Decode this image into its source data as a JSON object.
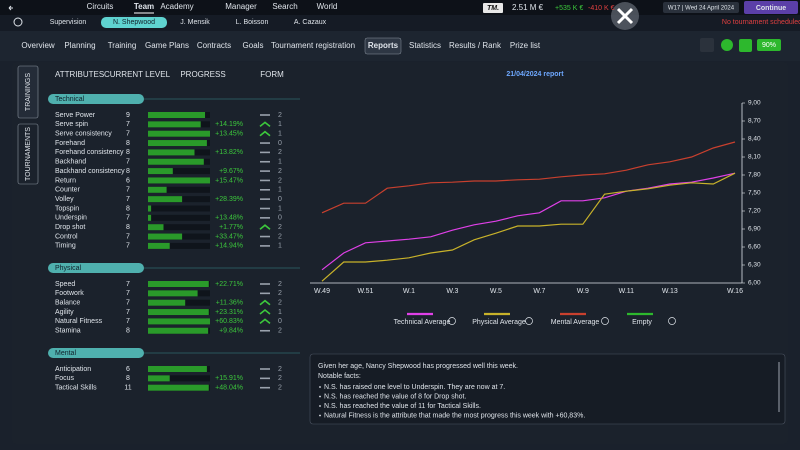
{
  "header": {
    "nav": [
      "Circuits",
      "Team",
      "Academy",
      "Manager",
      "Search",
      "World"
    ],
    "logo": "TM.",
    "money": "2.51 M €",
    "income": "+535 K €",
    "expense": "-410 K €",
    "date": "W17 | Wed 24 April 2024",
    "continue": "Continue",
    "status": "No tournament scheduled"
  },
  "player_tabs": [
    "Supervision",
    "N. Shepwood",
    "J. Mensik",
    "L. Boisson",
    "A. Cazaux"
  ],
  "menu": [
    "Overview",
    "Planning",
    "Training",
    "Game Plans",
    "Contracts",
    "Goals",
    "Tournament registration",
    "Reports",
    "Statistics",
    "Results / Rank",
    "Prize list"
  ],
  "morale": "90%",
  "side_tabs": [
    "TRAININGS",
    "TOURNAMENTS"
  ],
  "columns": [
    "ATTRIBUTES",
    "CURRENT LEVEL",
    "PROGRESS",
    "FORM"
  ],
  "sections": [
    {
      "title": "Technical",
      "rows": [
        {
          "name": "Serve Power",
          "level": 9,
          "progress": null,
          "trend": "flat",
          "form": 2,
          "bar": 92
        },
        {
          "name": "Serve spin",
          "level": 7,
          "progress": "+14.19%",
          "trend": "up",
          "form": 1,
          "bar": 85
        },
        {
          "name": "Serve consistency",
          "level": 7,
          "progress": "+13.45%",
          "trend": "up",
          "form": 1,
          "bar": 100
        },
        {
          "name": "Forehand",
          "level": 8,
          "progress": null,
          "trend": "flat",
          "form": 0,
          "bar": 95
        },
        {
          "name": "Forehand consistency",
          "level": 8,
          "progress": "+13.82%",
          "trend": "flat",
          "form": 2,
          "bar": 75
        },
        {
          "name": "Backhand",
          "level": 7,
          "progress": null,
          "trend": "flat",
          "form": 1,
          "bar": 90
        },
        {
          "name": "Backhand consistency",
          "level": 8,
          "progress": "+9.67%",
          "trend": "flat",
          "form": 2,
          "bar": 40
        },
        {
          "name": "Return",
          "level": 6,
          "progress": "+15.47%",
          "trend": "flat",
          "form": 2,
          "bar": 100
        },
        {
          "name": "Counter",
          "level": 7,
          "progress": null,
          "trend": "flat",
          "form": 1,
          "bar": 30
        },
        {
          "name": "Volley",
          "level": 7,
          "progress": "+28.39%",
          "trend": "flat",
          "form": 0,
          "bar": 55
        },
        {
          "name": "Topspin",
          "level": 8,
          "progress": null,
          "trend": "flat",
          "form": 1,
          "bar": 5
        },
        {
          "name": "Underspin",
          "level": 7,
          "progress": "+13.48%",
          "trend": "flat",
          "form": 0,
          "bar": 5
        },
        {
          "name": "Drop shot",
          "level": 8,
          "progress": "+1.77%",
          "trend": "up",
          "form": 2,
          "bar": 25
        },
        {
          "name": "Control",
          "level": 7,
          "progress": "+33.47%",
          "trend": "flat",
          "form": 2,
          "bar": 55
        },
        {
          "name": "Timing",
          "level": 7,
          "progress": "+14.94%",
          "trend": "flat",
          "form": 1,
          "bar": 35
        }
      ]
    },
    {
      "title": "Physical",
      "rows": [
        {
          "name": "Speed",
          "level": 7,
          "progress": "+22.71%",
          "trend": "flat",
          "form": 2,
          "bar": 98
        },
        {
          "name": "Footwork",
          "level": 7,
          "progress": null,
          "trend": "flat",
          "form": 2,
          "bar": 80
        },
        {
          "name": "Balance",
          "level": 7,
          "progress": "+11.36%",
          "trend": "up",
          "form": 2,
          "bar": 60
        },
        {
          "name": "Agility",
          "level": 7,
          "progress": "+23.31%",
          "trend": "up",
          "form": 1,
          "bar": 98
        },
        {
          "name": "Natural Fitness",
          "level": 7,
          "progress": "+60.83%",
          "trend": "up",
          "form": 0,
          "bar": 100
        },
        {
          "name": "Stamina",
          "level": 8,
          "progress": "+9.84%",
          "trend": "flat",
          "form": 2,
          "bar": 97
        }
      ]
    },
    {
      "title": "Mental",
      "rows": [
        {
          "name": "Anticipation",
          "level": 6,
          "progress": null,
          "trend": "flat",
          "form": 2,
          "bar": 95
        },
        {
          "name": "Focus",
          "level": 8,
          "progress": "+15.91%",
          "trend": "flat",
          "form": 2,
          "bar": 35
        },
        {
          "name": "Tactical Skills",
          "level": 11,
          "progress": "+48.04%",
          "trend": "flat",
          "form": 2,
          "bar": 98
        }
      ]
    }
  ],
  "chart_data": {
    "type": "line",
    "title": "21/04/2024 report",
    "categories": [
      "W.49",
      null,
      "W.51",
      null,
      "W.1",
      null,
      "W.3",
      null,
      "W.5",
      null,
      "W.7",
      null,
      "W.9",
      null,
      "W.11",
      null,
      "W.13",
      null,
      null,
      "W.16"
    ],
    "series": [
      {
        "name": "Technical Average",
        "color": "#e040e8",
        "values": [
          6.22,
          6.5,
          6.67,
          6.7,
          6.73,
          6.77,
          6.88,
          6.97,
          7.03,
          7.12,
          7.17,
          7.37,
          7.37,
          7.42,
          7.53,
          7.58,
          7.65,
          7.68,
          7.75,
          7.83
        ]
      },
      {
        "name": "Physical Average",
        "color": "#c8b22a",
        "values": [
          6.03,
          6.35,
          6.35,
          6.38,
          6.42,
          6.5,
          6.55,
          6.72,
          6.83,
          6.95,
          6.95,
          6.98,
          6.98,
          7.48,
          7.53,
          7.57,
          7.63,
          7.67,
          7.65,
          7.83
        ]
      },
      {
        "name": "Mental Average",
        "color": "#c8402e",
        "values": [
          7.17,
          7.33,
          7.33,
          7.58,
          7.62,
          7.67,
          7.68,
          7.7,
          7.7,
          7.72,
          7.73,
          7.77,
          7.8,
          7.82,
          7.88,
          7.97,
          8.02,
          8.1,
          8.25,
          8.35
        ]
      },
      {
        "name": "Empty",
        "color": "#2db82d",
        "values": [
          null,
          null,
          null,
          null,
          null,
          null,
          null,
          null,
          null,
          null,
          null,
          null,
          null,
          null,
          null,
          null,
          null,
          null,
          null,
          null
        ]
      }
    ],
    "ylim": [
      6,
      9
    ],
    "yticks": [
      {
        "value": 6,
        "label": "6,00"
      },
      {
        "value": 6.3,
        "label": "6,30"
      },
      {
        "value": 6.6,
        "label": "6,60"
      },
      {
        "value": 6.9,
        "label": "6,90"
      },
      {
        "value": 7.2,
        "label": "7,20"
      },
      {
        "value": 7.5,
        "label": "7,50"
      },
      {
        "value": 7.8,
        "label": "7,80"
      },
      {
        "value": 8.1,
        "label": "8,10"
      },
      {
        "value": 8.4,
        "label": "8,40"
      },
      {
        "value": 8.7,
        "label": "8,70"
      },
      {
        "value": 9,
        "label": "9,00"
      }
    ],
    "grid": false,
    "legend": "bottom"
  },
  "report": {
    "intro": "Given her age, Nancy Shepwood has progressed well this week.",
    "notable": "Notable facts:",
    "facts": [
      "N.S. has raised one level to Underspin. They are now at 7.",
      "N.S. has reached the value of 8 for Drop shot.",
      "N.S. has reached the value of 11 for Tactical Skills.",
      "Natural Fitness is the attribute that made the most progress this week with +60,83%."
    ]
  }
}
